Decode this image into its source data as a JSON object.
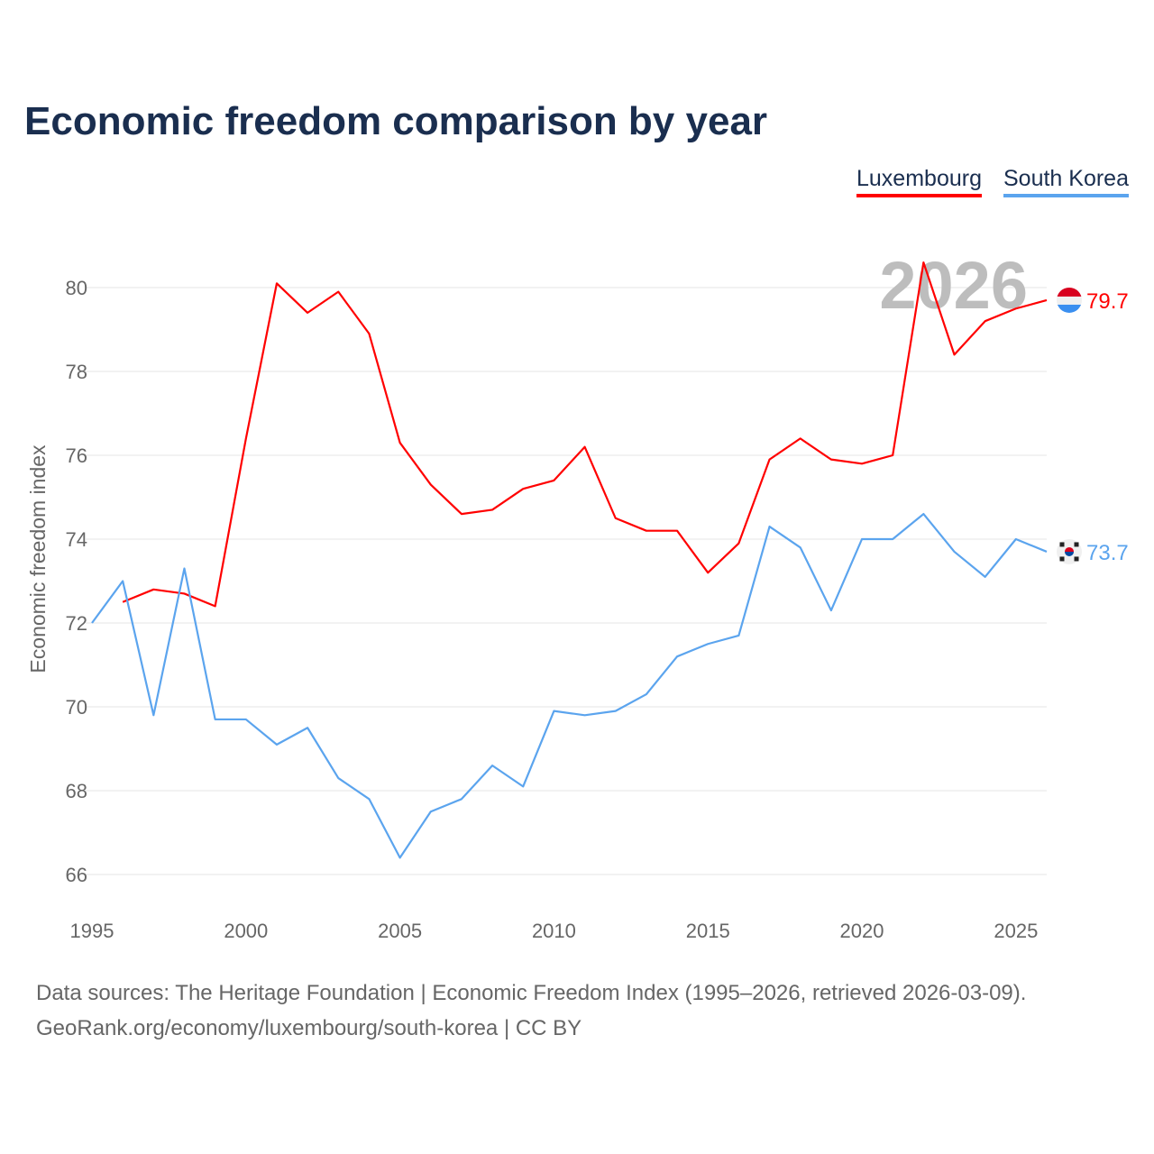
{
  "title": "Economic freedom comparison by year",
  "legend": [
    "Luxembourg",
    "South Korea"
  ],
  "watermark_year": "2026",
  "sources": {
    "line1": "Data sources: The Heritage Foundation | Economic Freedom Index (1995–2026, retrieved 2026-03-09).",
    "line2": "GeoRank.org/economy/luxembourg/south-korea | CC BY"
  },
  "chart_data": {
    "type": "line",
    "title": "Economic freedom comparison by year",
    "xlabel": "",
    "ylabel": "Economic freedom index",
    "xlim": [
      1995,
      2026
    ],
    "ylim": [
      66,
      80
    ],
    "xticks": [
      1995,
      2000,
      2005,
      2010,
      2015,
      2020,
      2025
    ],
    "yticks": [
      66,
      68,
      70,
      72,
      74,
      76,
      78,
      80
    ],
    "grid": true,
    "legend_position": "top-right",
    "series": [
      {
        "name": "Luxembourg",
        "color": "#ff0000",
        "end_label": "79.7",
        "x": [
          1996,
          1997,
          1998,
          1999,
          2000,
          2001,
          2002,
          2003,
          2004,
          2005,
          2006,
          2007,
          2008,
          2009,
          2010,
          2011,
          2012,
          2013,
          2014,
          2015,
          2016,
          2017,
          2018,
          2019,
          2020,
          2021,
          2022,
          2023,
          2024,
          2025,
          2026
        ],
        "values": [
          72.5,
          72.8,
          72.7,
          72.4,
          76.4,
          80.1,
          79.4,
          79.9,
          78.9,
          76.3,
          75.3,
          74.6,
          74.7,
          75.2,
          75.4,
          76.2,
          74.5,
          74.2,
          74.2,
          73.2,
          73.9,
          75.9,
          76.4,
          75.9,
          75.8,
          76.0,
          80.6,
          78.4,
          79.2,
          79.5,
          79.7
        ]
      },
      {
        "name": "South Korea",
        "color": "#5ba4ee",
        "end_label": "73.7",
        "x": [
          1995,
          1996,
          1997,
          1998,
          1999,
          2000,
          2001,
          2002,
          2003,
          2004,
          2005,
          2006,
          2007,
          2008,
          2009,
          2010,
          2011,
          2012,
          2013,
          2014,
          2015,
          2016,
          2017,
          2018,
          2019,
          2020,
          2021,
          2022,
          2023,
          2024,
          2025,
          2026
        ],
        "values": [
          72.0,
          73.0,
          69.8,
          73.3,
          69.7,
          69.7,
          69.1,
          69.5,
          68.3,
          67.8,
          66.4,
          67.5,
          67.8,
          68.6,
          68.1,
          69.9,
          69.8,
          69.9,
          70.3,
          71.2,
          71.5,
          71.7,
          74.3,
          73.8,
          72.3,
          74.0,
          74.0,
          74.6,
          73.7,
          73.1,
          74.0,
          73.7
        ]
      }
    ]
  }
}
